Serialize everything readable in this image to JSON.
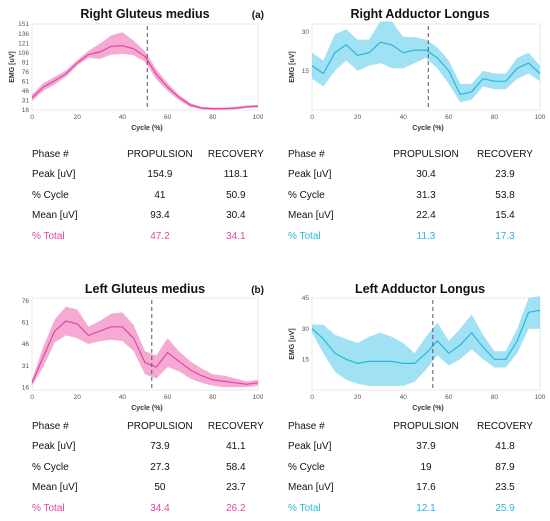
{
  "labels": {
    "a": "(a)",
    "b": "(b)"
  },
  "chart_data": [
    {
      "id": "rgm",
      "type": "line",
      "title": "Right Gluteus medius",
      "xlabel": "Cycle (%)",
      "ylabel": "EMG [uV]",
      "xlim": [
        0,
        100
      ],
      "ylim": [
        16,
        151
      ],
      "yticks": [
        16,
        31,
        46,
        61,
        76,
        91,
        106,
        121,
        136,
        151
      ],
      "xticks": [
        0,
        20,
        40,
        60,
        80,
        100
      ],
      "divider_x": 51,
      "color": "#e0479e",
      "band_color": "#f29bcb",
      "x": [
        0,
        5,
        10,
        15,
        20,
        25,
        30,
        35,
        40,
        45,
        50,
        55,
        60,
        65,
        70,
        75,
        80,
        85,
        90,
        95,
        100
      ],
      "mean": [
        35,
        52,
        62,
        73,
        90,
        103,
        107,
        116,
        117,
        112,
        100,
        72,
        52,
        36,
        24,
        19,
        18,
        18,
        19,
        21,
        22
      ],
      "lower": [
        30,
        46,
        56,
        68,
        86,
        98,
        96,
        103,
        104,
        102,
        92,
        64,
        46,
        31,
        21,
        17,
        16,
        16,
        17,
        19,
        20
      ],
      "upper": [
        40,
        58,
        68,
        78,
        94,
        109,
        120,
        133,
        138,
        125,
        108,
        80,
        58,
        40,
        27,
        21,
        20,
        20,
        21,
        23,
        24
      ],
      "table": {
        "headers": [
          "Phase #",
          "PROPULSION",
          "RECOVERY"
        ],
        "rows": [
          [
            "Peak [uV]",
            "154.9",
            "118.1"
          ],
          [
            "% Cycle",
            "41",
            "50.9"
          ],
          [
            "Mean [uV]",
            "93.4",
            "30.4"
          ]
        ],
        "total": [
          "% Total",
          "47.2",
          "34.1"
        ]
      }
    },
    {
      "id": "ral",
      "type": "line",
      "title": "Right Adductor Longus",
      "xlabel": "Cycle (%)",
      "ylabel": "EMG [uV]",
      "xlim": [
        0,
        100
      ],
      "ylim": [
        0,
        33
      ],
      "yticks": [
        15,
        30
      ],
      "xticks": [
        0,
        20,
        40,
        60,
        80,
        100
      ],
      "divider_x": 51,
      "color": "#29b6dd",
      "band_color": "#8fdcf2",
      "x": [
        0,
        5,
        10,
        15,
        20,
        25,
        30,
        35,
        40,
        45,
        50,
        55,
        60,
        65,
        70,
        75,
        80,
        85,
        90,
        95,
        100
      ],
      "mean": [
        17,
        14,
        22,
        25,
        21,
        22,
        26,
        25,
        22,
        23,
        23,
        20,
        15,
        6,
        7,
        12,
        11,
        11,
        16,
        18,
        14
      ],
      "lower": [
        12,
        9,
        15,
        19,
        15,
        17,
        18,
        16,
        16,
        18,
        20,
        16,
        10,
        3,
        4,
        9,
        8,
        8,
        12,
        14,
        11
      ],
      "upper": [
        22,
        19,
        29,
        31,
        27,
        27,
        34,
        34,
        28,
        28,
        27,
        24,
        19,
        10,
        10,
        15,
        14,
        14,
        20,
        22,
        17
      ],
      "table": {
        "headers": [
          "Phase #",
          "PROPULSION",
          "RECOVERY"
        ],
        "rows": [
          [
            "Peak [uV]",
            "30.4",
            "23.9"
          ],
          [
            "% Cycle",
            "31.3",
            "53.8"
          ],
          [
            "Mean [uV]",
            "22.4",
            "15.4"
          ]
        ],
        "total": [
          "% Total",
          "11.3",
          "17.3"
        ]
      }
    },
    {
      "id": "lgm",
      "type": "line",
      "title": "Left Gluteus medius",
      "xlabel": "Cycle (%)",
      "ylabel": "",
      "xlim": [
        0,
        100
      ],
      "ylim": [
        14,
        78
      ],
      "yticks": [
        16,
        31,
        46,
        61,
        76
      ],
      "xticks": [
        0,
        20,
        40,
        60,
        80,
        100
      ],
      "divider_x": 53,
      "color": "#e0479e",
      "band_color": "#f29bcb",
      "x": [
        0,
        5,
        10,
        15,
        20,
        25,
        30,
        35,
        40,
        45,
        50,
        55,
        60,
        65,
        70,
        75,
        80,
        85,
        90,
        95,
        100
      ],
      "mean": [
        19,
        37,
        55,
        62,
        60,
        52,
        55,
        58,
        58,
        50,
        33,
        30,
        40,
        34,
        28,
        24,
        21,
        20,
        19,
        18,
        19
      ],
      "lower": [
        17,
        30,
        47,
        52,
        50,
        46,
        48,
        49,
        48,
        41,
        25,
        22,
        30,
        27,
        22,
        19,
        17,
        16,
        16,
        16,
        17
      ],
      "upper": [
        21,
        44,
        63,
        72,
        70,
        58,
        62,
        67,
        68,
        59,
        41,
        38,
        50,
        41,
        34,
        29,
        25,
        24,
        22,
        20,
        21
      ],
      "table": {
        "headers": [
          "Phase #",
          "PROPULSION",
          "RECOVERY"
        ],
        "rows": [
          [
            "Peak [uV]",
            "73.9",
            "41.1"
          ],
          [
            "% Cycle",
            "27.3",
            "58.4"
          ],
          [
            "Mean [uV]",
            "50",
            "23.7"
          ]
        ],
        "total": [
          "% Total",
          "34.4",
          "26.2"
        ]
      }
    },
    {
      "id": "lal",
      "type": "line",
      "title": "Left Adductor Longus",
      "xlabel": "Cycle (%)",
      "ylabel": "EMG [uV]",
      "xlim": [
        0,
        100
      ],
      "ylim": [
        0,
        45
      ],
      "yticks": [
        15,
        30,
        45
      ],
      "xticks": [
        0,
        20,
        40,
        60,
        80,
        100
      ],
      "divider_x": 53,
      "color": "#29b6dd",
      "band_color": "#8fdcf2",
      "x": [
        0,
        5,
        10,
        15,
        20,
        25,
        30,
        35,
        40,
        45,
        50,
        55,
        60,
        65,
        70,
        75,
        80,
        85,
        90,
        95,
        100
      ],
      "mean": [
        30,
        25,
        18,
        15,
        13,
        14,
        14,
        14,
        13,
        13,
        18,
        24,
        18,
        22,
        28,
        21,
        15,
        15,
        24,
        38,
        39
      ],
      "lower": [
        28,
        18,
        9,
        5,
        3,
        2,
        2,
        2,
        2,
        4,
        10,
        17,
        12,
        15,
        20,
        15,
        11,
        11,
        18,
        30,
        30
      ],
      "upper": [
        32,
        32,
        27,
        25,
        23,
        26,
        28,
        26,
        23,
        18,
        26,
        33,
        24,
        30,
        37,
        27,
        19,
        19,
        30,
        45,
        46
      ],
      "table": {
        "headers": [
          "Phase #",
          "PROPULSION",
          "RECOVERY"
        ],
        "rows": [
          [
            "Peak [uV]",
            "37.9",
            "41.8"
          ],
          [
            "% Cycle",
            "19",
            "87.9"
          ],
          [
            "Mean [uV]",
            "17.6",
            "23.5"
          ]
        ],
        "total": [
          "% Total",
          "12.1",
          "25.9"
        ]
      }
    }
  ]
}
